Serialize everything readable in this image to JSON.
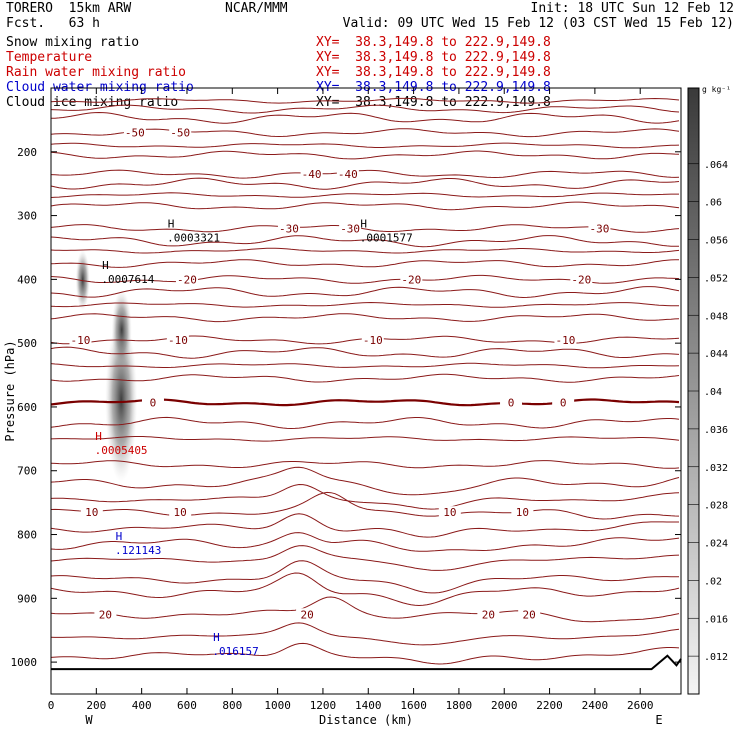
{
  "header": {
    "model": "TORERO  15km ARW",
    "forecast": "Fcst.   63 h",
    "org": "NCAR/MMM",
    "init": "Init: 18 UTC Sun 12 Feb 12",
    "valid": "Valid: 09 UTC Wed 15 Feb 12 (03 CST Wed 15 Feb 12)"
  },
  "fields": [
    {
      "name": "Snow mixing ratio",
      "xy": "",
      "color": "#000000"
    },
    {
      "name": "Temperature",
      "xy": "XY=  38.3,149.8 to 222.9,149.8",
      "color": "#cc0000"
    },
    {
      "name": "Rain water mixing ratio",
      "xy": "XY=  38.3,149.8 to 222.9,149.8",
      "color": "#cc0000"
    },
    {
      "name": "Cloud water mixing ratio",
      "xy": "XY=  38.3,149.8 to 222.9,149.8",
      "color": "#0000cc"
    },
    {
      "name": "Cloud ice mixing ratio",
      "xy": "XY=  38.3,149.8 to 222.9,149.8",
      "color": "#000000"
    }
  ],
  "first_xy": "XY=  38.3,149.8 to 222.9,149.8",
  "chart_data": {
    "type": "cross-section",
    "xlabel": "Distance (km)",
    "ylabel": "Pressure (hPa)",
    "xlim": [
      0,
      2780
    ],
    "ylim": [
      1050,
      100
    ],
    "x_ticks": [
      0,
      200,
      400,
      600,
      800,
      1000,
      1200,
      1400,
      1600,
      1800,
      2000,
      2200,
      2400,
      2600
    ],
    "y_ticks": [
      200,
      300,
      400,
      500,
      600,
      700,
      800,
      900,
      1000
    ],
    "left_end": "W",
    "right_end": "E",
    "colorbar": {
      "unit": "g kg⁻¹",
      "ticks": [
        ".064",
        ".06",
        ".056",
        ".052",
        ".048",
        ".044",
        ".04",
        ".036",
        ".032",
        ".028",
        ".024",
        ".02",
        ".016",
        ".012"
      ],
      "min": 0.008,
      "max": 0.072
    },
    "isotherms_c": [
      {
        "label": "-50",
        "p": 170,
        "labels_at_km": [
          370,
          570
        ]
      },
      {
        "label": "-40",
        "p": 235,
        "labels_at_km": [
          1150,
          1310
        ]
      },
      {
        "label": "-30",
        "p": 320,
        "labels_at_km": [
          1050,
          1320,
          2420
        ]
      },
      {
        "label": "-20",
        "p": 400,
        "labels_at_km": [
          600,
          1590,
          2340
        ]
      },
      {
        "label": "-10",
        "p": 495,
        "labels_at_km": [
          130,
          560,
          1420,
          2270
        ]
      },
      {
        "label": "0",
        "p": 593,
        "labels_at_km": [
          450,
          2030,
          2260
        ]
      },
      {
        "label": "10",
        "p": 765,
        "labels_at_km": [
          180,
          570,
          1760,
          2080
        ]
      },
      {
        "label": "20",
        "p": 925,
        "labels_at_km": [
          240,
          1130,
          1930,
          2110
        ]
      }
    ],
    "extrema": [
      {
        "type": "H",
        "value": ".0003321",
        "x_km": 530,
        "p": 328,
        "color": "#000000"
      },
      {
        "type": "H",
        "value": ".0001577",
        "x_km": 1380,
        "p": 328,
        "color": "#000000"
      },
      {
        "type": "H",
        "value": ".0007614",
        "x_km": 240,
        "p": 393,
        "color": "#000000"
      },
      {
        "type": "H",
        "value": ".0005405",
        "x_km": 210,
        "p": 661,
        "color": "#cc0000"
      },
      {
        "type": "H",
        "value": ".121143",
        "x_km": 300,
        "p": 818,
        "color": "#0000cc"
      },
      {
        "type": "H",
        "value": ".016157",
        "x_km": 730,
        "p": 976,
        "color": "#0000cc"
      }
    ]
  }
}
